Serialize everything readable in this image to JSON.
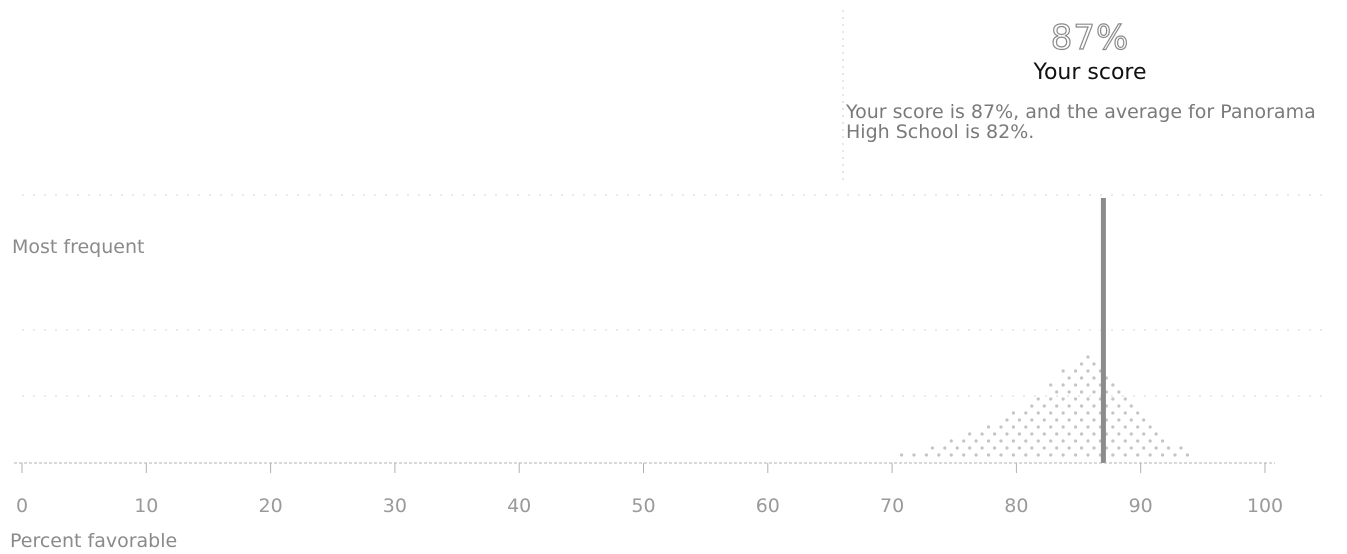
{
  "score": {
    "value": "87%",
    "label": "Your score",
    "description": "Your score is 87%, and the average for Panorama High School is 82%."
  },
  "chart_data": {
    "type": "scatter",
    "title": "",
    "xlabel": "Percent favorable",
    "ylabel": "Most frequent",
    "xlim": [
      0,
      100
    ],
    "xticks": [
      "0",
      "10",
      "20",
      "30",
      "40",
      "50",
      "60",
      "70",
      "80",
      "90",
      "100"
    ],
    "your_score": 87,
    "school_average": 82,
    "colors": {
      "dots": "#c4c4c4",
      "marker": "#8c8c8c",
      "axis": "#b0b0b0",
      "text": "#8a8a8a"
    },
    "distribution_bins": [
      {
        "x": 71,
        "count": 1
      },
      {
        "x": 72,
        "count": 1
      },
      {
        "x": 73,
        "count": 2
      },
      {
        "x": 74,
        "count": 2
      },
      {
        "x": 75,
        "count": 3
      },
      {
        "x": 76,
        "count": 4
      },
      {
        "x": 77,
        "count": 4
      },
      {
        "x": 78,
        "count": 5
      },
      {
        "x": 79,
        "count": 6
      },
      {
        "x": 80,
        "count": 7
      },
      {
        "x": 81,
        "count": 8
      },
      {
        "x": 82,
        "count": 9
      },
      {
        "x": 83,
        "count": 11
      },
      {
        "x": 84,
        "count": 13
      },
      {
        "x": 85,
        "count": 14
      },
      {
        "x": 86,
        "count": 15
      },
      {
        "x": 87,
        "count": 13
      },
      {
        "x": 88,
        "count": 11
      },
      {
        "x": 89,
        "count": 9
      },
      {
        "x": 90,
        "count": 7
      },
      {
        "x": 91,
        "count": 5
      },
      {
        "x": 92,
        "count": 3
      },
      {
        "x": 93,
        "count": 2
      },
      {
        "x": 94,
        "count": 1
      }
    ]
  }
}
